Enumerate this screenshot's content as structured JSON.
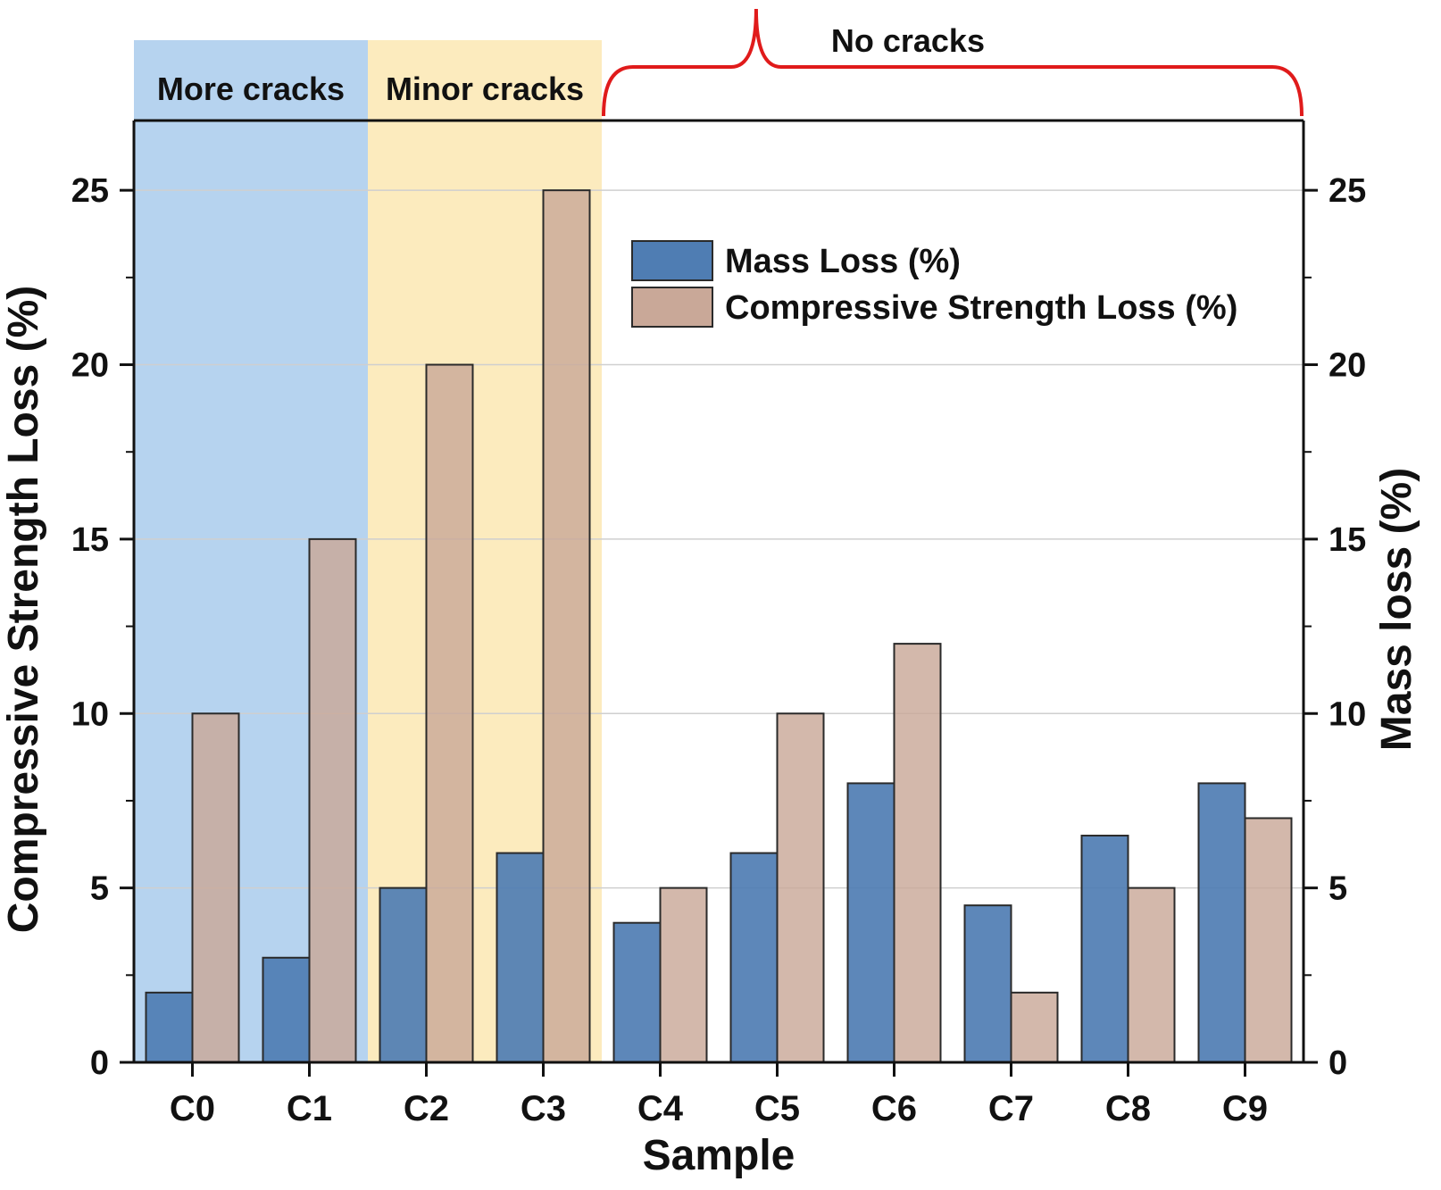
{
  "chart_data": {
    "type": "bar",
    "xlabel": "Sample",
    "ylabel_left": "Compressive Strength Loss (%)",
    "ylabel_right": "Mass loss (%)",
    "ylim": [
      0,
      27
    ],
    "yticks": [
      0,
      5,
      10,
      15,
      20,
      25
    ],
    "categories": [
      "C0",
      "C1",
      "C2",
      "C3",
      "C4",
      "C5",
      "C6",
      "C7",
      "C8",
      "C9"
    ],
    "series": [
      {
        "name": "Mass Loss (%)",
        "color": "#4f7db3",
        "values": [
          2,
          3,
          5,
          6,
          4,
          6,
          8,
          4.5,
          6.5,
          8
        ]
      },
      {
        "name": "Compressive Strength Loss (%)",
        "color": "#c9a898",
        "values": [
          10,
          15,
          20,
          25,
          5,
          10,
          12,
          2,
          5,
          7
        ]
      }
    ],
    "zones": [
      {
        "label": "More cracks",
        "from": "C0",
        "to": "C1",
        "color": "#a9cbec"
      },
      {
        "label": "Minor cracks",
        "from": "C2",
        "to": "C3",
        "color": "#fbe7b3"
      },
      {
        "label": "No cracks",
        "from": "C4",
        "to": "C9",
        "bracket_color": "#e01b1b"
      }
    ],
    "legend_position": "top-right",
    "grid": true
  }
}
